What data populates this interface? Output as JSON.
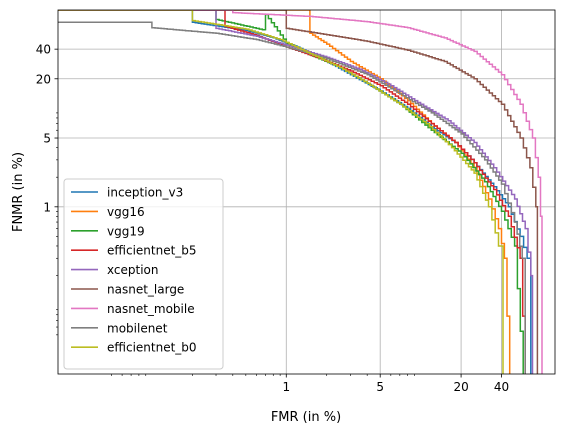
{
  "chart_data": {
    "type": "line",
    "title": "",
    "xlabel": "FMR (in %)",
    "ylabel": "FNMR (in %)",
    "x_scale": "log",
    "y_scale": "log",
    "xlim": [
      0.02,
      100
    ],
    "ylim": [
      0.02,
      100
    ],
    "grid": true,
    "legend_position": "center-left",
    "x_ticks": [
      {
        "value": 1,
        "label": "1"
      },
      {
        "value": 5,
        "label": "5"
      },
      {
        "value": 20,
        "label": "20"
      },
      {
        "value": 40,
        "label": "40"
      }
    ],
    "y_ticks": [
      {
        "value": 1,
        "label": "1"
      },
      {
        "value": 5,
        "label": "5"
      },
      {
        "value": 20,
        "label": "20"
      },
      {
        "value": 40,
        "label": "40"
      }
    ],
    "series": [
      {
        "name": "inception_v3",
        "color": "#1f77b4",
        "points": [
          [
            0.02,
            100
          ],
          [
            0.2,
            100
          ],
          [
            0.2,
            75
          ],
          [
            0.5,
            62
          ],
          [
            0.8,
            52
          ],
          [
            1.2,
            42
          ],
          [
            2,
            30
          ],
          [
            3,
            22
          ],
          [
            5,
            15
          ],
          [
            8,
            10
          ],
          [
            12,
            6.5
          ],
          [
            18,
            4.5
          ],
          [
            25,
            2.8
          ],
          [
            35,
            1.6
          ],
          [
            45,
            1.0
          ],
          [
            55,
            0.5
          ],
          [
            62,
            0.3
          ],
          [
            66,
            0.02
          ]
        ]
      },
      {
        "name": "vgg16",
        "color": "#ff7f0e",
        "points": [
          [
            0.02,
            100
          ],
          [
            1.5,
            100
          ],
          [
            1.5,
            58
          ],
          [
            2,
            45
          ],
          [
            3,
            30
          ],
          [
            5,
            20
          ],
          [
            8,
            12
          ],
          [
            12,
            7
          ],
          [
            18,
            4.5
          ],
          [
            25,
            2.5
          ],
          [
            32,
            1.2
          ],
          [
            38,
            0.6
          ],
          [
            42,
            0.3
          ],
          [
            46,
            0.02
          ]
        ]
      },
      {
        "name": "vgg19",
        "color": "#2ca02c",
        "points": [
          [
            0.02,
            100
          ],
          [
            0.3,
            100
          ],
          [
            0.3,
            80
          ],
          [
            0.7,
            62
          ],
          [
            0.7,
            90
          ],
          [
            1,
            46
          ],
          [
            1.5,
            35
          ],
          [
            2.5,
            26
          ],
          [
            4,
            18
          ],
          [
            7,
            11
          ],
          [
            12,
            6
          ],
          [
            20,
            3.5
          ],
          [
            30,
            1.8
          ],
          [
            40,
            0.9
          ],
          [
            50,
            0.4
          ],
          [
            58,
            0.02
          ]
        ]
      },
      {
        "name": "efficientnet_b5",
        "color": "#d62728",
        "points": [
          [
            0.02,
            100
          ],
          [
            0.35,
            100
          ],
          [
            0.35,
            68
          ],
          [
            0.6,
            55
          ],
          [
            1,
            42
          ],
          [
            1.8,
            32
          ],
          [
            3,
            24
          ],
          [
            5,
            17
          ],
          [
            8,
            11
          ],
          [
            12,
            7
          ],
          [
            18,
            4.5
          ],
          [
            25,
            2.8
          ],
          [
            35,
            1.5
          ],
          [
            45,
            0.8
          ],
          [
            55,
            0.3
          ],
          [
            60,
            0.02
          ]
        ]
      },
      {
        "name": "xception",
        "color": "#9467bd",
        "points": [
          [
            0.02,
            100
          ],
          [
            0.3,
            100
          ],
          [
            0.3,
            65
          ],
          [
            0.6,
            54
          ],
          [
            1,
            44
          ],
          [
            2,
            33
          ],
          [
            3.5,
            25
          ],
          [
            6,
            17
          ],
          [
            10,
            11
          ],
          [
            16,
            7.5
          ],
          [
            25,
            4.5
          ],
          [
            35,
            2.5
          ],
          [
            50,
            1.2
          ],
          [
            60,
            0.6
          ],
          [
            66,
            0.2
          ],
          [
            68,
            0.02
          ]
        ]
      },
      {
        "name": "nasnet_large",
        "color": "#8c564b",
        "points": [
          [
            0.02,
            100
          ],
          [
            1,
            100
          ],
          [
            1,
            65
          ],
          [
            2,
            56
          ],
          [
            4,
            48
          ],
          [
            8,
            39
          ],
          [
            15,
            30
          ],
          [
            25,
            20
          ],
          [
            40,
            11
          ],
          [
            55,
            5
          ],
          [
            65,
            2.5
          ],
          [
            72,
            1.0
          ],
          [
            74,
            0.02
          ]
        ]
      },
      {
        "name": "nasnet_mobile",
        "color": "#e377c2",
        "points": [
          [
            0.02,
            100
          ],
          [
            0.4,
            100
          ],
          [
            0.4,
            94
          ],
          [
            1.5,
            86
          ],
          [
            4,
            76
          ],
          [
            8,
            66
          ],
          [
            15,
            52
          ],
          [
            25,
            38
          ],
          [
            40,
            22
          ],
          [
            55,
            11
          ],
          [
            68,
            5
          ],
          [
            75,
            2
          ],
          [
            78,
            0.8
          ],
          [
            80,
            0.02
          ]
        ]
      },
      {
        "name": "mobilenet",
        "color": "#7f7f7f",
        "points": [
          [
            0.02,
            75
          ],
          [
            0.1,
            75
          ],
          [
            0.1,
            66
          ],
          [
            0.3,
            58
          ],
          [
            0.6,
            50
          ],
          [
            1,
            42
          ],
          [
            2,
            32
          ],
          [
            4,
            22
          ],
          [
            7,
            14
          ],
          [
            12,
            9
          ],
          [
            20,
            5.5
          ],
          [
            30,
            3
          ],
          [
            40,
            1.7
          ],
          [
            50,
            0.7
          ],
          [
            57,
            0.3
          ],
          [
            60,
            0.02
          ]
        ]
      },
      {
        "name": "efficientnet_b0",
        "color": "#bcbd22",
        "points": [
          [
            0.02,
            100
          ],
          [
            0.2,
            100
          ],
          [
            0.2,
            78
          ],
          [
            0.5,
            64
          ],
          [
            0.9,
            50
          ],
          [
            1.5,
            36
          ],
          [
            2.5,
            26
          ],
          [
            4,
            18
          ],
          [
            7,
            11
          ],
          [
            11,
            7
          ],
          [
            17,
            4
          ],
          [
            25,
            2.2
          ],
          [
            32,
            1.0
          ],
          [
            38,
            0.4
          ],
          [
            41,
            0.02
          ]
        ]
      }
    ]
  }
}
